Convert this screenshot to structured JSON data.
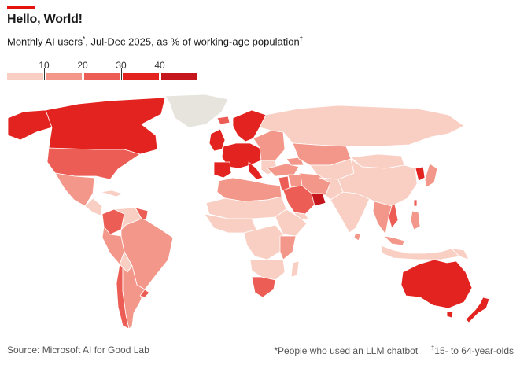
{
  "header": {
    "title": "Hello, World!",
    "subtitle_main": "Monthly AI users",
    "subtitle_mark1": "*",
    "subtitle_rest": ", Jul-Dec 2025, as % of working-age population",
    "subtitle_mark2": "†"
  },
  "legend": {
    "ticks": [
      "10",
      "20",
      "30",
      "40"
    ],
    "colors": [
      "#f9cfc4",
      "#f3978a",
      "#ec5e55",
      "#e3231f",
      "#c4161c"
    ]
  },
  "map_colors": {
    "bin1": "#f9cfc4",
    "bin2": "#f3978a",
    "bin3": "#ec5e55",
    "bin4": "#e3231f",
    "bin5": "#c4161c",
    "no_data": "#e6e4dc"
  },
  "chart_data": {
    "type": "choropleth",
    "title": "Monthly AI users, Jul-Dec 2025, as % of working-age population",
    "bins": [
      "<10",
      "10-20",
      "20-30",
      "30-40",
      ">40"
    ],
    "regions": [
      {
        "name": "Canada",
        "bin": 4
      },
      {
        "name": "United States",
        "bin": 3
      },
      {
        "name": "Mexico",
        "bin": 2
      },
      {
        "name": "Central America",
        "bin": 1
      },
      {
        "name": "Colombia",
        "bin": 3
      },
      {
        "name": "Venezuela",
        "bin": 1
      },
      {
        "name": "Peru",
        "bin": 2
      },
      {
        "name": "Brazil",
        "bin": 2
      },
      {
        "name": "Chile",
        "bin": 3
      },
      {
        "name": "Argentina",
        "bin": 2
      },
      {
        "name": "Greenland",
        "bin": 0
      },
      {
        "name": "Western Europe",
        "bin": 4
      },
      {
        "name": "Nordics",
        "bin": 4
      },
      {
        "name": "Eastern Europe",
        "bin": 2
      },
      {
        "name": "Russia",
        "bin": 1
      },
      {
        "name": "Central Asia",
        "bin": 2
      },
      {
        "name": "Middle East",
        "bin": 2
      },
      {
        "name": "Saudi Arabia",
        "bin": 3
      },
      {
        "name": "United Arab Emirates",
        "bin": 5
      },
      {
        "name": "North Africa",
        "bin": 2
      },
      {
        "name": "Sub-Saharan Africa",
        "bin": 1
      },
      {
        "name": "South Africa",
        "bin": 3
      },
      {
        "name": "India",
        "bin": 1
      },
      {
        "name": "China",
        "bin": 1
      },
      {
        "name": "Mongolia",
        "bin": 1
      },
      {
        "name": "South Korea",
        "bin": 4
      },
      {
        "name": "Japan",
        "bin": 2
      },
      {
        "name": "Vietnam",
        "bin": 3
      },
      {
        "name": "Southeast Asia",
        "bin": 2
      },
      {
        "name": "Indonesia",
        "bin": 1
      },
      {
        "name": "Australia",
        "bin": 4
      },
      {
        "name": "New Zealand",
        "bin": 4
      }
    ]
  },
  "footer": {
    "source": "Source: Microsoft AI for Good Lab",
    "note1_mark": "*",
    "note1": "People who used an LLM chatbot",
    "note2_mark": "†",
    "note2": "15- to 64-year-olds"
  }
}
